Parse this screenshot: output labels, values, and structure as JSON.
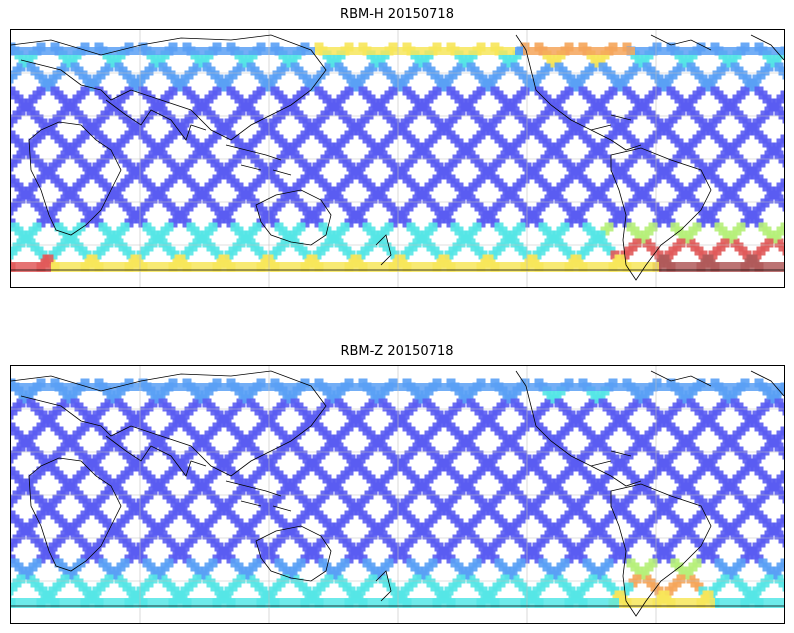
{
  "panels": [
    {
      "title": "RBM-H 20150718",
      "variant": "h"
    },
    {
      "title": "RBM-Z 20150718",
      "variant": "z"
    }
  ],
  "colors": {
    "low": "#5a5cf2",
    "low_mid": "#5aa0f5",
    "mid": "#55e6e6",
    "mid_high": "#b6f07a",
    "high": "#f7e65a",
    "higher": "#f5a55a",
    "max": "#e05a5a",
    "extreme": "#b05a5a",
    "coast": "#000000",
    "grid": "#bfbfbf"
  }
}
